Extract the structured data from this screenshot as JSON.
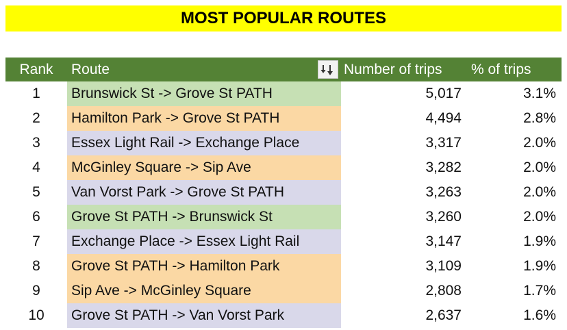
{
  "title": "MOST POPULAR ROUTES",
  "colors": {
    "title_bg": "#ffff00",
    "header_bg": "#548235",
    "green": "#c6e0b4",
    "orange": "#f8cbad",
    "peach": "#fbd8a4",
    "lavender": "#d9d8ea"
  },
  "table": {
    "headers": {
      "rank": "Rank",
      "route": "Route",
      "num_trips": "Number of trips",
      "pct_trips": "% of trips"
    },
    "sort_icon": "sort-descending-icon",
    "rows": [
      {
        "rank": "1",
        "route": "Brunswick St -> Grove St PATH",
        "trips": "5,017",
        "pct": "3.1%",
        "color": "#c6e0b4"
      },
      {
        "rank": "2",
        "route": "Hamilton Park -> Grove St PATH",
        "trips": "4,494",
        "pct": "2.8%",
        "color": "#fbd8a4"
      },
      {
        "rank": "3",
        "route": "Essex Light Rail -> Exchange Place",
        "trips": "3,317",
        "pct": "2.0%",
        "color": "#d9d8ea"
      },
      {
        "rank": "4",
        "route": "McGinley Square -> Sip Ave",
        "trips": "3,282",
        "pct": "2.0%",
        "color": "#fbd8a4"
      },
      {
        "rank": "5",
        "route": "Van Vorst Park -> Grove St PATH",
        "trips": "3,263",
        "pct": "2.0%",
        "color": "#d9d8ea"
      },
      {
        "rank": "6",
        "route": "Grove St PATH -> Brunswick St",
        "trips": "3,260",
        "pct": "2.0%",
        "color": "#c6e0b4"
      },
      {
        "rank": "7",
        "route": "Exchange Place -> Essex Light Rail",
        "trips": "3,147",
        "pct": "1.9%",
        "color": "#d9d8ea"
      },
      {
        "rank": "8",
        "route": "Grove St PATH -> Hamilton Park",
        "trips": "3,109",
        "pct": "1.9%",
        "color": "#fbd8a4"
      },
      {
        "rank": "9",
        "route": "Sip Ave -> McGinley Square",
        "trips": "2,808",
        "pct": "1.7%",
        "color": "#fbd8a4"
      },
      {
        "rank": "10",
        "route": "Grove St PATH -> Van Vorst Park",
        "trips": "2,637",
        "pct": "1.6%",
        "color": "#d9d8ea"
      }
    ]
  }
}
